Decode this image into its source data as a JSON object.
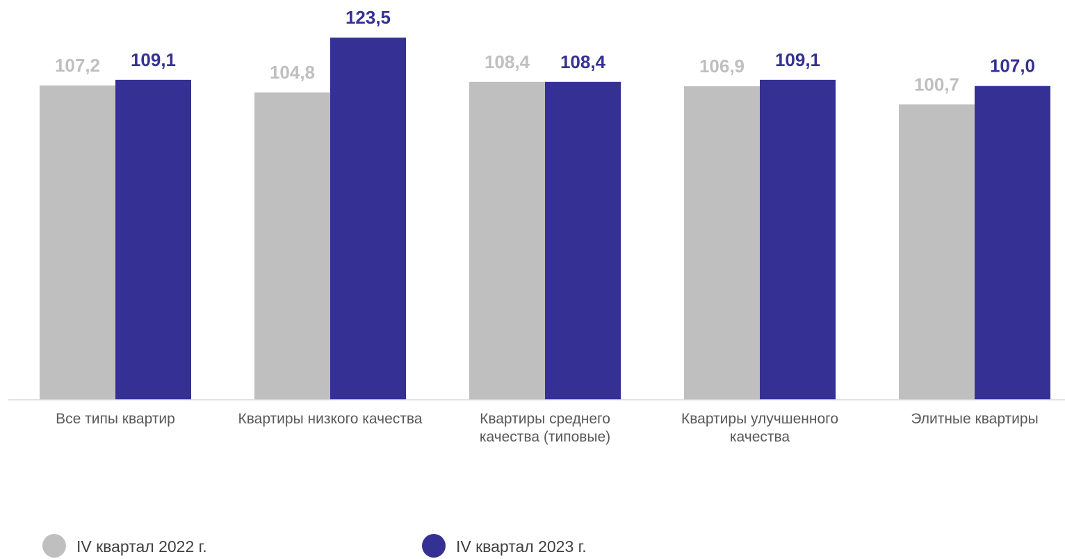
{
  "chart_data": {
    "type": "bar",
    "categories": [
      [
        "Все типы квартир"
      ],
      [
        "Квартиры низкого качества"
      ],
      [
        "Квартиры среднего",
        "качества (типовые)"
      ],
      [
        "Квартиры улучшенного",
        "качества"
      ],
      [
        "Элитные квартиры"
      ]
    ],
    "series": [
      {
        "name": "IV квартал 2022 г.",
        "color": "#bfbfbf",
        "values": [
          107.2,
          104.8,
          108.4,
          106.9,
          100.7
        ],
        "labels": [
          "107,2",
          "104,8",
          "108,4",
          "106,9",
          "100,7"
        ]
      },
      {
        "name": "IV квартал 2023 г.",
        "color": "#353194",
        "values": [
          109.1,
          123.5,
          108.4,
          109.1,
          107.0
        ],
        "labels": [
          "109,1",
          "123,5",
          "108,4",
          "109,1",
          "107,0"
        ]
      }
    ],
    "ylim": [
      0,
      124
    ],
    "grid": false,
    "legend_position": "bottom-left",
    "data_labels": true
  }
}
